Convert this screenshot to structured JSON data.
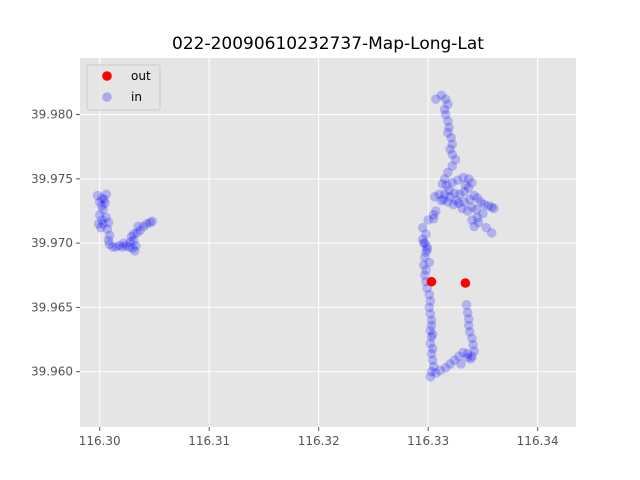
{
  "chart_data": {
    "type": "scatter",
    "title": "022-20090610232737-Map-Long-Lat",
    "xlabel": "",
    "ylabel": "",
    "xlim": [
      116.2982,
      116.3435
    ],
    "ylim": [
      39.9557,
      39.9844
    ],
    "xticks": [
      "116.30",
      "116.31",
      "116.32",
      "116.33",
      "116.34"
    ],
    "yticks": [
      "39.960",
      "39.965",
      "39.970",
      "39.975",
      "39.980"
    ],
    "grid": true,
    "legend_position": "top-left",
    "style": {
      "background": "#e5e5e5",
      "grid_color": "#ffffff"
    },
    "series": [
      {
        "name": "out",
        "color": "#ff0000",
        "alpha": 1.0,
        "points": [
          [
            116.3303,
            39.967
          ],
          [
            116.3334,
            39.9669
          ]
        ]
      },
      {
        "name": "in",
        "color": "#0000ff",
        "alpha": 0.22,
        "points": [
          [
            116.2998,
            39.9737
          ],
          [
            116.3,
            39.9732
          ],
          [
            116.3002,
            39.9729
          ],
          [
            116.3004,
            39.9734
          ],
          [
            116.3006,
            39.9738
          ],
          [
            116.3005,
            39.9731
          ],
          [
            116.3003,
            39.9726
          ],
          [
            116.3,
            39.9722
          ],
          [
            116.3002,
            39.9718
          ],
          [
            116.2999,
            39.9715
          ],
          [
            116.3001,
            39.9712
          ],
          [
            116.3003,
            39.9715
          ],
          [
            116.3006,
            39.972
          ],
          [
            116.3008,
            39.9716
          ],
          [
            116.3007,
            39.9711
          ],
          [
            116.3009,
            39.9706
          ],
          [
            116.3008,
            39.9702
          ],
          [
            116.3009,
            39.9699
          ],
          [
            116.3012,
            39.9697
          ],
          [
            116.3015,
            39.9697
          ],
          [
            116.3018,
            39.9698
          ],
          [
            116.3021,
            39.9697
          ],
          [
            116.3024,
            39.9698
          ],
          [
            116.3027,
            39.9697
          ],
          [
            116.303,
            39.9696
          ],
          [
            116.3032,
            39.9694
          ],
          [
            116.3033,
            39.9698
          ],
          [
            116.3031,
            39.9702
          ],
          [
            116.3029,
            39.9705
          ],
          [
            116.3031,
            39.9707
          ],
          [
            116.3034,
            39.9708
          ],
          [
            116.3037,
            39.971
          ],
          [
            116.304,
            39.9713
          ],
          [
            116.3043,
            39.9715
          ],
          [
            116.3046,
            39.9716
          ],
          [
            116.3048,
            39.9717
          ],
          [
            116.3035,
            39.9713
          ],
          [
            116.3028,
            39.9701
          ],
          [
            116.3022,
            39.97
          ],
          [
            116.3002,
            39.9735
          ],
          [
            116.3307,
            39.9812
          ],
          [
            116.3312,
            39.9815
          ],
          [
            116.3316,
            39.9812
          ],
          [
            116.3318,
            39.9808
          ],
          [
            116.3315,
            39.9804
          ],
          [
            116.3316,
            39.98
          ],
          [
            116.3318,
            39.9795
          ],
          [
            116.3319,
            39.979
          ],
          [
            116.3318,
            39.9786
          ],
          [
            116.3321,
            39.9782
          ],
          [
            116.3322,
            39.9777
          ],
          [
            116.332,
            39.9773
          ],
          [
            116.3322,
            39.9769
          ],
          [
            116.3325,
            39.9765
          ],
          [
            116.3322,
            39.976
          ],
          [
            116.3318,
            39.9755
          ],
          [
            116.3315,
            39.975
          ],
          [
            116.3313,
            39.9746
          ],
          [
            116.3317,
            39.9745
          ],
          [
            116.3322,
            39.9747
          ],
          [
            116.3327,
            39.9749
          ],
          [
            116.3332,
            39.9751
          ],
          [
            116.3337,
            39.975
          ],
          [
            116.334,
            39.9747
          ],
          [
            116.3337,
            39.9743
          ],
          [
            116.3333,
            39.974
          ],
          [
            116.3329,
            39.9738
          ],
          [
            116.3324,
            39.9739
          ],
          [
            116.3319,
            39.9741
          ],
          [
            116.3315,
            39.9738
          ],
          [
            116.331,
            39.9738
          ],
          [
            116.3306,
            39.9736
          ],
          [
            116.3312,
            39.9733
          ],
          [
            116.3318,
            39.9732
          ],
          [
            116.3323,
            39.973
          ],
          [
            116.3328,
            39.9731
          ],
          [
            116.3333,
            39.9732
          ],
          [
            116.3338,
            39.9734
          ],
          [
            116.3342,
            39.9737
          ],
          [
            116.3345,
            39.9735
          ],
          [
            116.3348,
            39.9732
          ],
          [
            116.3351,
            39.973
          ],
          [
            116.3355,
            39.9729
          ],
          [
            116.3358,
            39.9728
          ],
          [
            116.336,
            39.9727
          ],
          [
            116.335,
            39.9723
          ],
          [
            116.3345,
            39.972
          ],
          [
            116.334,
            39.9718
          ],
          [
            116.3342,
            39.9713
          ],
          [
            116.3346,
            39.9716
          ],
          [
            116.3353,
            39.9712
          ],
          [
            116.3358,
            39.9708
          ],
          [
            116.3336,
            39.9725
          ],
          [
            116.3331,
            39.9727
          ],
          [
            116.3326,
            39.9733
          ],
          [
            116.332,
            39.9736
          ],
          [
            116.3334,
            39.9745
          ],
          [
            116.3314,
            39.9734
          ],
          [
            116.3344,
            39.9726
          ],
          [
            116.334,
            39.9728
          ],
          [
            116.3305,
            39.9722
          ],
          [
            116.33,
            39.9718
          ],
          [
            116.3295,
            39.9712
          ],
          [
            116.3298,
            39.9707
          ],
          [
            116.3295,
            39.9703
          ],
          [
            116.3297,
            39.97
          ],
          [
            116.3299,
            39.9697
          ],
          [
            116.3298,
            39.9693
          ],
          [
            116.3297,
            39.9689
          ],
          [
            116.3296,
            39.9683
          ],
          [
            116.3298,
            39.9679
          ],
          [
            116.3297,
            39.9675
          ],
          [
            116.3298,
            39.967
          ],
          [
            116.3299,
            39.9665
          ],
          [
            116.3301,
            39.966
          ],
          [
            116.3302,
            39.9655
          ],
          [
            116.3301,
            39.965
          ],
          [
            116.3302,
            39.9645
          ],
          [
            116.3303,
            39.964
          ],
          [
            116.3303,
            39.9636
          ],
          [
            116.3302,
            39.9632
          ],
          [
            116.3303,
            39.9627
          ],
          [
            116.3302,
            39.9622
          ],
          [
            116.3304,
            39.9618
          ],
          [
            116.3303,
            39.9614
          ],
          [
            116.3304,
            39.9609
          ],
          [
            116.3305,
            39.9604
          ],
          [
            116.3303,
            39.96
          ],
          [
            116.3302,
            39.9596
          ],
          [
            116.3307,
            39.9599
          ],
          [
            116.3311,
            39.9601
          ],
          [
            116.3316,
            39.9603
          ],
          [
            116.332,
            39.9606
          ],
          [
            116.3324,
            39.9609
          ],
          [
            116.3328,
            39.9612
          ],
          [
            116.3332,
            39.9615
          ],
          [
            116.3336,
            39.9614
          ],
          [
            116.334,
            39.9612
          ],
          [
            116.3342,
            39.9616
          ],
          [
            116.3341,
            39.9621
          ],
          [
            116.334,
            39.9626
          ],
          [
            116.3338,
            39.9631
          ],
          [
            116.3337,
            39.9636
          ],
          [
            116.3337,
            39.9641
          ],
          [
            116.3336,
            39.9646
          ],
          [
            116.3335,
            39.9652
          ],
          [
            116.3336,
            39.9611
          ],
          [
            116.3339,
            39.961
          ],
          [
            116.3304,
            39.9629
          ],
          [
            116.3301,
            39.9685
          ],
          [
            116.3296,
            39.97
          ],
          [
            116.3299,
            39.9695
          ],
          [
            116.3307,
            39.9725
          ],
          [
            116.3305,
            39.9719
          ],
          [
            116.333,
            39.9606
          ]
        ]
      }
    ]
  }
}
